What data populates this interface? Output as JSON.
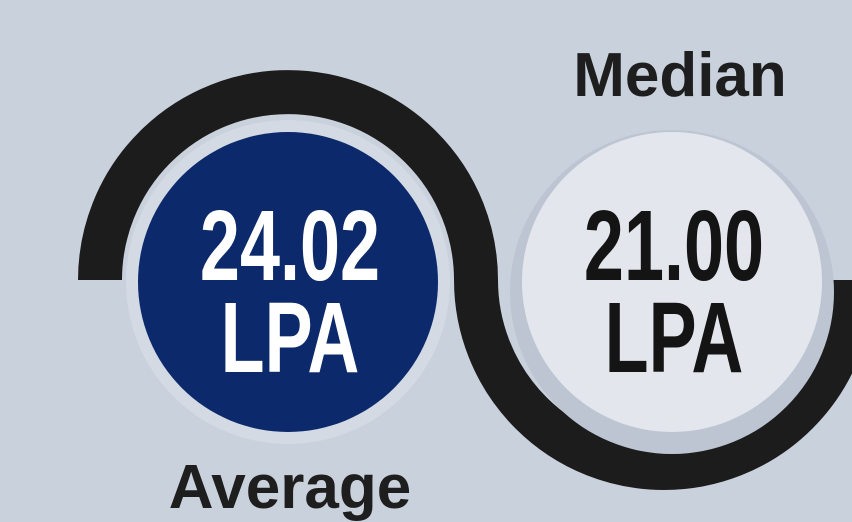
{
  "stats": [
    {
      "label": "Average",
      "value": "24.02",
      "unit": "LPA"
    },
    {
      "label": "Median",
      "value": "21.00",
      "unit": "LPA"
    }
  ]
}
